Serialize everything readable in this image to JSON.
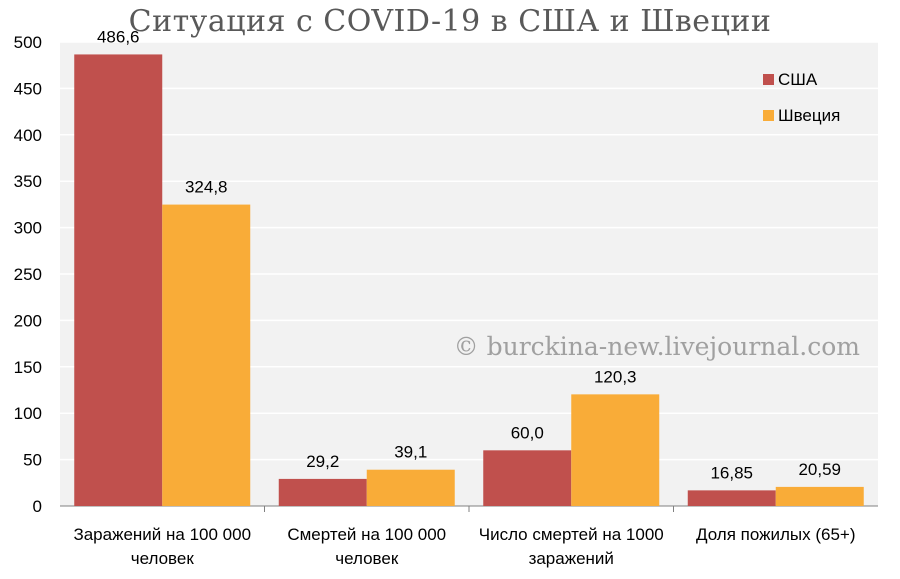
{
  "chart_data": {
    "type": "bar",
    "title": "Ситуация с COVID-19 в США и Швеции",
    "categories": [
      [
        "Заражений на 100 000",
        "человек"
      ],
      [
        "Смертей на 100 000",
        "человек"
      ],
      [
        "Число смертей на 1000",
        "заражений"
      ],
      [
        "Доля пожилых (65+)"
      ]
    ],
    "series": [
      {
        "name": "США",
        "color": "#c0504d",
        "values": [
          486.6,
          29.2,
          60.0,
          16.85
        ],
        "labels": [
          "486,6",
          "29,2",
          "60,0",
          "16,85"
        ]
      },
      {
        "name": "Швеция",
        "color": "#f9ac38",
        "values": [
          324.8,
          39.1,
          120.3,
          20.59
        ],
        "labels": [
          "324,8",
          "39,1",
          "120,3",
          "20,59"
        ]
      }
    ],
    "ylim": [
      0,
      500
    ],
    "yticks": [
      0,
      50,
      100,
      150,
      200,
      250,
      300,
      350,
      400,
      450,
      500
    ],
    "grid": true,
    "legend": "top-right",
    "plot_background": "#f2f2f2",
    "watermark": "© burckina-new.livejournal.com"
  }
}
